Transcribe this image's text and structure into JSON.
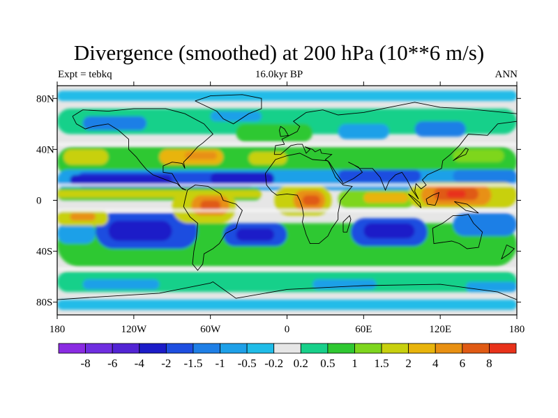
{
  "title": "Divergence (smoothed) at 200 hPa (10**6 m/s)",
  "subtitle_left": "Expt = tebkq",
  "subtitle_center": "16.0kyr BP",
  "subtitle_right": "ANN",
  "map": {
    "projection": "cylindrical equidistant",
    "lon_ticks": [
      "180",
      "120W",
      "60W",
      "0",
      "60E",
      "120E",
      "180"
    ],
    "lat_ticks": [
      "80N",
      "40N",
      "0",
      "40S",
      "80S"
    ]
  },
  "colorbar": {
    "levels": [
      "-8",
      "-6",
      "-4",
      "-2",
      "-1.5",
      "-1",
      "-0.5",
      "-0.2",
      "0.2",
      "0.5",
      "1",
      "1.5",
      "2",
      "4",
      "6",
      "8"
    ],
    "colors": [
      "#8a2be2",
      "#6f2ee0",
      "#5224d4",
      "#1c1cc8",
      "#1e4ee0",
      "#1f7fe6",
      "#1ea0e8",
      "#20bce8",
      "#e6e6e6",
      "#18d08a",
      "#2fc832",
      "#7ed61e",
      "#c8d00e",
      "#e8b40c",
      "#e89012",
      "#e05a14",
      "#e8321a"
    ]
  }
}
